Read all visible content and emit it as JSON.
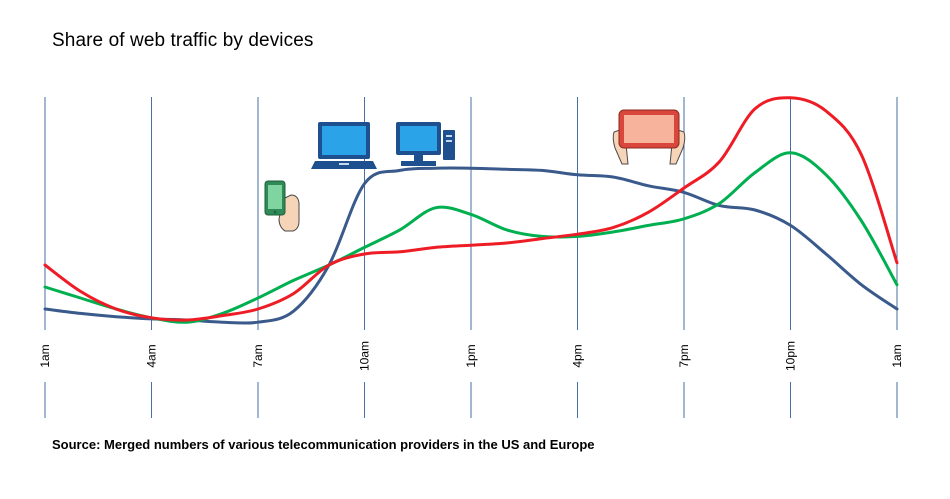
{
  "title": "Share of web traffic by devices",
  "source": "Source: Merged numbers of various telecommunication providers in the US and Europe",
  "icons": [
    "smartphone-icon",
    "laptop-icon",
    "desktop-computer-icon",
    "tablet-icon"
  ],
  "colors": {
    "gridline": "#4a6fa5",
    "desktop": "#3a5a8c",
    "mobile": "#00b050",
    "tablet": "#ee1c25"
  },
  "chart_data": {
    "type": "line",
    "title": "Share of web traffic by devices",
    "xlabel": "",
    "ylabel": "",
    "x_ticks": [
      "1am",
      "4am",
      "7am",
      "10am",
      "1pm",
      "4pm",
      "7pm",
      "10pm",
      "1am"
    ],
    "ylim": [
      0,
      100
    ],
    "grid": "vertical",
    "series": [
      {
        "key": "desktop",
        "color": "#3a5a8c",
        "x": [
          0,
          1,
          2,
          3,
          4,
          5,
          6,
          7,
          8,
          9,
          10,
          11,
          12,
          13,
          14,
          15,
          16,
          17,
          18,
          19,
          20,
          21,
          22,
          23,
          24
        ],
        "values": [
          5,
          3,
          1.5,
          0.5,
          0,
          -1,
          -1,
          4,
          25,
          62,
          68,
          69,
          69,
          68.5,
          68,
          66,
          65,
          61,
          58,
          52,
          50,
          43,
          30,
          16,
          5
        ]
      },
      {
        "key": "mobile",
        "color": "#00b050",
        "x": [
          0,
          1,
          2,
          3,
          4,
          5,
          6,
          7,
          8,
          9,
          10,
          11,
          12,
          13,
          14,
          15,
          16,
          17,
          18,
          19,
          20,
          21,
          22,
          23,
          24
        ],
        "values": [
          15,
          10,
          5,
          1,
          -1,
          3,
          10,
          18,
          25,
          33,
          41,
          51,
          48,
          41,
          38,
          38,
          40,
          43,
          46,
          53,
          67,
          76,
          66,
          45,
          16
        ]
      },
      {
        "key": "tablet",
        "color": "#ee1c25",
        "x": [
          0,
          1,
          2,
          3,
          4,
          5,
          6,
          7,
          8,
          9,
          10,
          11,
          12,
          13,
          14,
          15,
          16,
          17,
          18,
          19,
          20,
          21,
          22,
          23,
          24
        ],
        "values": [
          25,
          13,
          5,
          1,
          0,
          2,
          5,
          12,
          25,
          30,
          31,
          33,
          34,
          35,
          37,
          39,
          42,
          49,
          60,
          72,
          96,
          101,
          95,
          75,
          26
        ]
      }
    ]
  }
}
